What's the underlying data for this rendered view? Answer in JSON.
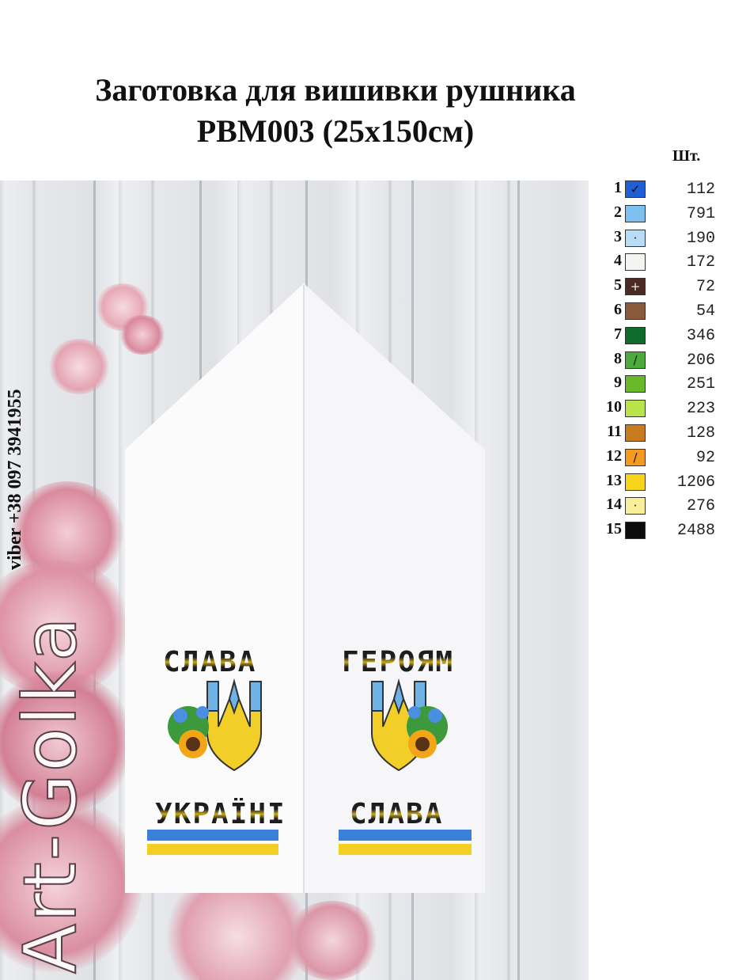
{
  "title": {
    "line1": "Заготовка для вишивки рушника",
    "line2": "РВМ003 (25х150см)"
  },
  "legend": {
    "header": "Шт.",
    "rows": [
      {
        "num": "1",
        "color": "#1f5fd6",
        "symbol": "✓",
        "count": "112"
      },
      {
        "num": "2",
        "color": "#7fbff0",
        "symbol": "",
        "count": "791"
      },
      {
        "num": "3",
        "color": "#b8dcf5",
        "symbol": "·",
        "count": "190"
      },
      {
        "num": "4",
        "color": "#f4f4f2",
        "symbol": "",
        "count": "172"
      },
      {
        "num": "5",
        "color": "#4a2a22",
        "symbol": "+",
        "count": "72"
      },
      {
        "num": "6",
        "color": "#8a5a3c",
        "symbol": "",
        "count": "54"
      },
      {
        "num": "7",
        "color": "#0e6b2a",
        "symbol": "",
        "count": "346"
      },
      {
        "num": "8",
        "color": "#4caa3c",
        "symbol": "/",
        "count": "206"
      },
      {
        "num": "9",
        "color": "#6ab82a",
        "symbol": "",
        "count": "251"
      },
      {
        "num": "10",
        "color": "#b9e34a",
        "symbol": "",
        "count": "223"
      },
      {
        "num": "11",
        "color": "#c87a1e",
        "symbol": "",
        "count": "128"
      },
      {
        "num": "12",
        "color": "#f59a20",
        "symbol": "/",
        "count": "92"
      },
      {
        "num": "13",
        "color": "#f7d31a",
        "symbol": "",
        "count": "1206"
      },
      {
        "num": "14",
        "color": "#f9ef9a",
        "symbol": "·",
        "count": "276"
      },
      {
        "num": "15",
        "color": "#0c0c0c",
        "symbol": "",
        "count": "2488"
      }
    ]
  },
  "towel": {
    "left_top": "СЛАВА",
    "left_bottom": "УКРАЇНІ",
    "right_top": "ГЕРОЯМ",
    "right_bottom": "СЛАВА"
  },
  "viber": "viber +38 097 3941955",
  "brand": "Art-Golka"
}
